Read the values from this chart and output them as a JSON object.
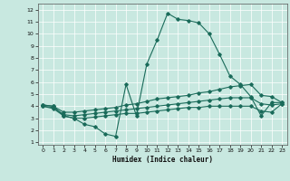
{
  "xlabel": "Humidex (Indice chaleur)",
  "bg_color": "#c8e8e0",
  "line_color": "#1a6b5a",
  "grid_color": "#ffffff",
  "xlim": [
    -0.5,
    23.5
  ],
  "ylim": [
    0.8,
    12.5
  ],
  "xticks": [
    0,
    1,
    2,
    3,
    4,
    5,
    6,
    7,
    8,
    9,
    10,
    11,
    12,
    13,
    14,
    15,
    16,
    17,
    18,
    19,
    20,
    21,
    22,
    23
  ],
  "yticks": [
    1,
    2,
    3,
    4,
    5,
    6,
    7,
    8,
    9,
    10,
    11,
    12
  ],
  "line1_x": [
    0,
    1,
    2,
    3,
    4,
    5,
    6,
    7,
    8,
    9,
    10,
    11,
    12,
    13,
    14,
    15,
    16,
    17,
    18,
    19,
    20,
    21,
    22,
    23
  ],
  "line1_y": [
    4.1,
    4.0,
    3.2,
    3.0,
    2.5,
    2.3,
    1.7,
    1.5,
    5.8,
    3.2,
    7.5,
    9.5,
    11.7,
    11.2,
    11.1,
    10.9,
    10.0,
    8.3,
    6.5,
    5.8,
    4.8,
    3.2,
    4.3,
    4.3
  ],
  "line2_x": [
    0,
    1,
    2,
    3,
    4,
    5,
    6,
    7,
    8,
    9,
    10,
    11,
    12,
    13,
    14,
    15,
    16,
    17,
    18,
    19,
    20,
    21,
    22,
    23
  ],
  "line2_y": [
    4.1,
    4.0,
    3.5,
    3.5,
    3.6,
    3.7,
    3.8,
    3.9,
    4.1,
    4.2,
    4.4,
    4.6,
    4.7,
    4.8,
    4.9,
    5.1,
    5.2,
    5.4,
    5.6,
    5.7,
    5.8,
    4.9,
    4.8,
    4.3
  ],
  "line3_x": [
    0,
    1,
    2,
    3,
    4,
    5,
    6,
    7,
    8,
    9,
    10,
    11,
    12,
    13,
    14,
    15,
    16,
    17,
    18,
    19,
    20,
    21,
    22,
    23
  ],
  "line3_y": [
    4.0,
    3.9,
    3.3,
    3.2,
    3.3,
    3.4,
    3.5,
    3.6,
    3.7,
    3.8,
    3.9,
    4.0,
    4.1,
    4.2,
    4.3,
    4.4,
    4.5,
    4.6,
    4.7,
    4.7,
    4.7,
    4.2,
    4.1,
    4.2
  ],
  "line4_x": [
    0,
    1,
    2,
    3,
    4,
    5,
    6,
    7,
    8,
    9,
    10,
    11,
    12,
    13,
    14,
    15,
    16,
    17,
    18,
    19,
    20,
    21,
    22,
    23
  ],
  "line4_y": [
    4.0,
    3.8,
    3.2,
    3.0,
    3.0,
    3.1,
    3.2,
    3.3,
    3.4,
    3.4,
    3.5,
    3.6,
    3.7,
    3.8,
    3.9,
    3.9,
    4.0,
    4.0,
    4.0,
    4.0,
    4.0,
    3.6,
    3.5,
    4.2
  ]
}
